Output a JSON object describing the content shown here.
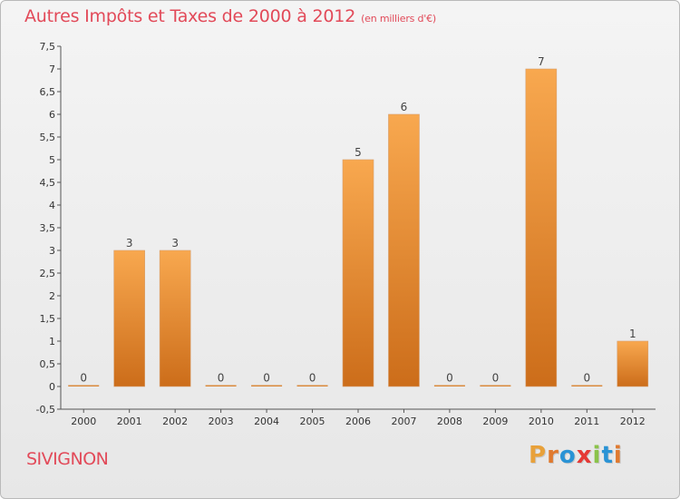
{
  "header": {
    "title": "Autres Impôts et Taxes de 2000 à 2012",
    "unit": "(en milliers d'€)"
  },
  "footer": {
    "commune": "SIVIGNON",
    "brand": "Proxiti"
  },
  "colors": {
    "title": "#e24a59",
    "bar_light": "#f8a84f",
    "bar_dark": "#cc6d1a",
    "logo_letters": [
      "#e8a13a",
      "#e07a2f",
      "#2a93d5",
      "#e53935",
      "#8bc34a",
      "#2a93d5",
      "#e07a2f"
    ]
  },
  "chart_data": {
    "type": "bar",
    "title": "Autres Impôts et Taxes de 2000 à 2012",
    "unit": "(en milliers d'€)",
    "categories": [
      "2000",
      "2001",
      "2002",
      "2003",
      "2004",
      "2005",
      "2006",
      "2007",
      "2008",
      "2009",
      "2010",
      "2011",
      "2012"
    ],
    "values": [
      0,
      3,
      3,
      0,
      0,
      0,
      5,
      6,
      0,
      0,
      7,
      0,
      1
    ],
    "data_labels": [
      "0",
      "3",
      "3",
      "0",
      "0",
      "0",
      "5",
      "6",
      "0",
      "0",
      "7",
      "0",
      "1"
    ],
    "ylim": [
      -0.5,
      7.5
    ],
    "yticks": [
      -0.5,
      0,
      0.5,
      1,
      1.5,
      2,
      2.5,
      3,
      3.5,
      4,
      4.5,
      5,
      5.5,
      6,
      6.5,
      7,
      7.5
    ],
    "ytick_labels": [
      "-0,5",
      "0",
      "0,5",
      "1",
      "1,5",
      "2",
      "2,5",
      "3",
      "3,5",
      "4",
      "4,5",
      "5",
      "5,5",
      "6",
      "6,5",
      "7",
      "7,5"
    ],
    "grid": false,
    "legend": "none"
  }
}
